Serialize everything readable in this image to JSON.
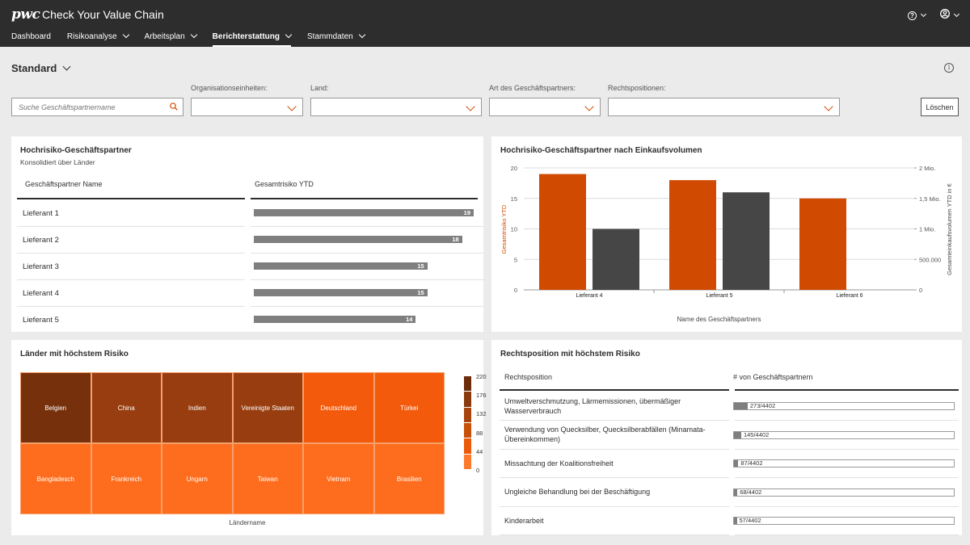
{
  "app": {
    "logo": "pwc",
    "title": "Check Your Value Chain"
  },
  "nav": [
    {
      "label": "Dashboard",
      "dropdown": false
    },
    {
      "label": "Risikoanalyse",
      "dropdown": true
    },
    {
      "label": "Arbeitsplan",
      "dropdown": true
    },
    {
      "label": "Berichterstattung",
      "dropdown": true,
      "active": true
    },
    {
      "label": "Stammdaten",
      "dropdown": true
    }
  ],
  "header_icons": {
    "help": "question-circle-icon",
    "user": "user-circle-icon"
  },
  "view": {
    "title": "Standard"
  },
  "filters": {
    "search_placeholder": "Suche Geschäftspartnername",
    "org_label": "Organisationseinheiten:",
    "country_label": "Land:",
    "partner_type_label": "Art des Geschäftspartners:",
    "legal_label": "Rechtspositionen:",
    "clear_label": "Löschen"
  },
  "panel_partners": {
    "title": "Hochrisiko-Geschäftspartner",
    "subtitle": "Konsolidiert über Länder",
    "col_name": "Geschäftspartner Name",
    "col_risk": "Gesamtrisiko YTD",
    "max": 19,
    "rows": [
      {
        "name": "Lieferant 1",
        "value": 19
      },
      {
        "name": "Lieferant 2",
        "value": 18
      },
      {
        "name": "Lieferant 3",
        "value": 15
      },
      {
        "name": "Lieferant 4",
        "value": 15
      },
      {
        "name": "Lieferant 5",
        "value": 14
      }
    ]
  },
  "panel_volume": {
    "title": "Hochrisiko-Geschäftspartner nach Einkaufsvolumen",
    "chart_data": {
      "type": "bar",
      "categories": [
        "Lieferant 4",
        "Lieferant 5",
        "Lieferant 6"
      ],
      "series": [
        {
          "name": "Gesamtrisiko YTD",
          "axis": "left",
          "color": "#d04a02",
          "values": [
            19,
            18,
            15
          ]
        },
        {
          "name": "Gesamteinkaufsvolumen YTD in €",
          "axis": "right",
          "color": "#464646",
          "values": [
            1000000,
            1600000,
            null
          ]
        }
      ],
      "xlabel": "Name des Geschäftspartners",
      "ylabel_left": "Gesamtrisiko YTD",
      "ylabel_right": "Gesamteinkaufsvolumen YTD in €",
      "ylim_left": [
        0,
        20
      ],
      "ylim_right": [
        0,
        2000000
      ],
      "yticks_left": [
        "0",
        "5",
        "10",
        "15",
        "20"
      ],
      "yticks_right": [
        "0",
        "500.000",
        "1 Mio.",
        "1,5 Mio.",
        "2 Mio."
      ],
      "grid": true
    }
  },
  "panel_countries": {
    "title": "Länder mit höchstem Risiko",
    "xlabel": "Ländername",
    "rows": [
      [
        {
          "name": "Belgien",
          "color": "#76310c"
        },
        {
          "name": "China",
          "color": "#973d0f"
        },
        {
          "name": "Indien",
          "color": "#973d0f"
        },
        {
          "name": "Vereinigte Staaten",
          "color": "#973d0f"
        },
        {
          "name": "Deutschland",
          "color": "#f45a0b"
        },
        {
          "name": "Türkei",
          "color": "#f45a0b"
        }
      ],
      [
        {
          "name": "Bangladesch",
          "color": "#fd6d1d"
        },
        {
          "name": "Frankreich",
          "color": "#fd6d1d"
        },
        {
          "name": "Ungarn",
          "color": "#fd6d1d"
        },
        {
          "name": "Taiwan",
          "color": "#fd6d1d"
        },
        {
          "name": "Vietnam",
          "color": "#fd6d1d"
        },
        {
          "name": "Brasilien",
          "color": "#fd6d1d"
        }
      ]
    ],
    "legend": {
      "labels": [
        "220",
        "176",
        "132",
        "88",
        "44",
        "0"
      ],
      "colors": [
        "#6b2c0a",
        "#8a3a0f",
        "#a8450f",
        "#c85008",
        "#ea5a08",
        "#fd7a2d"
      ]
    }
  },
  "panel_legal": {
    "title": "Rechtsposition mit höchstem Risiko",
    "col_name": "Rechtsposition",
    "col_count": "# von Geschäftspartnern",
    "total": 4402,
    "rows": [
      {
        "label": "Umweltverschmutzung, Lärmemissionen, übermäßiger Wasserverbrauch",
        "count": 273,
        "text": "273/4402"
      },
      {
        "label": "Verwendung von Quecksilber, Quecksilberabfällen (Minamata-Übereinkommen)",
        "count": 145,
        "text": "145/4402"
      },
      {
        "label": "Missachtung der Koalitionsfreiheit",
        "count": 87,
        "text": "87/4402"
      },
      {
        "label": "Ungleiche Behandlung bei der Beschäftigung",
        "count": 68,
        "text": "68/4402"
      },
      {
        "label": "Kinderarbeit",
        "count": 57,
        "text": "57/4402"
      }
    ]
  }
}
